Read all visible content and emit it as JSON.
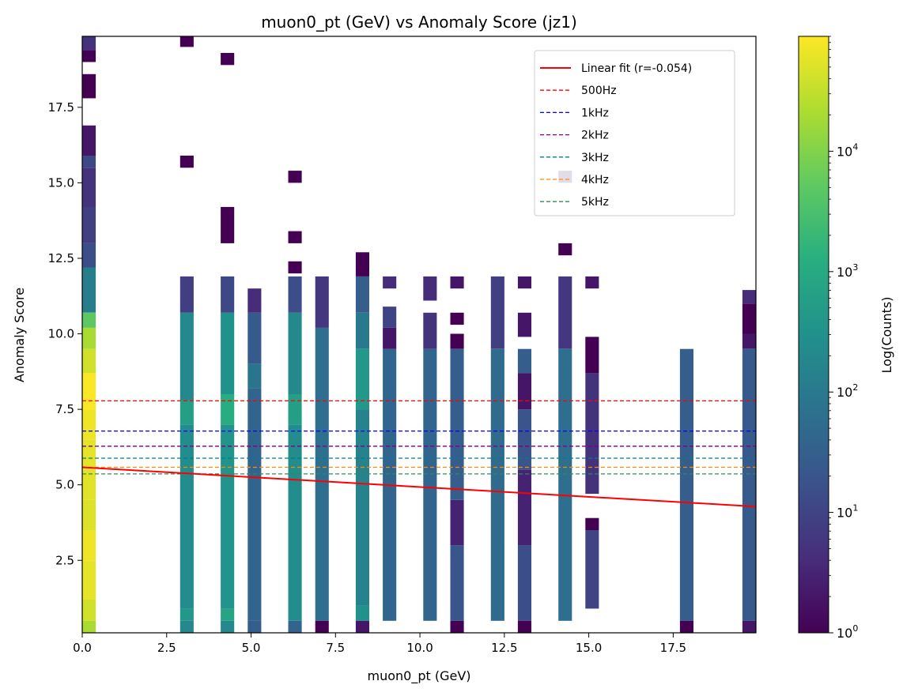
{
  "chart_data": {
    "type": "heatmap",
    "title": "muon0_pt (GeV) vs Anomaly Score (jz1)",
    "xlabel": "muon0_pt (GeV)",
    "ylabel": "Anomaly Score",
    "colorbar_label": "Log(Counts)",
    "colormap": "viridis",
    "colorbar_scale": "log",
    "colorbar_range": [
      1,
      90000
    ],
    "colorbar_ticks": [
      {
        "v": 1,
        "base": "10",
        "exp": "0"
      },
      {
        "v": 10,
        "base": "10",
        "exp": "1"
      },
      {
        "v": 100,
        "base": "10",
        "exp": "2"
      },
      {
        "v": 1000,
        "base": "10",
        "exp": "3"
      },
      {
        "v": 10000,
        "base": "10",
        "exp": "4"
      }
    ],
    "xlim": [
      0,
      19.95
    ],
    "ylim": [
      0.1,
      19.85
    ],
    "xticks": [
      {
        "v": 0,
        "label": "0.0"
      },
      {
        "v": 2.5,
        "label": "2.5"
      },
      {
        "v": 5,
        "label": "5.0"
      },
      {
        "v": 7.5,
        "label": "7.5"
      },
      {
        "v": 10,
        "label": "10.0"
      },
      {
        "v": 12.5,
        "label": "12.5"
      },
      {
        "v": 15,
        "label": "15.0"
      },
      {
        "v": 17.5,
        "label": "17.5"
      }
    ],
    "yticks": [
      {
        "v": 2.5,
        "label": "2.5"
      },
      {
        "v": 5,
        "label": "5.0"
      },
      {
        "v": 7.5,
        "label": "7.5"
      },
      {
        "v": 10,
        "label": "10.0"
      },
      {
        "v": 12.5,
        "label": "12.5"
      },
      {
        "v": 15,
        "label": "15.0"
      },
      {
        "v": 17.5,
        "label": "17.5"
      }
    ],
    "bin_width_x": 0.4,
    "bin_height_y": 0.395,
    "columns": [
      {
        "x": 0.0,
        "cells": [
          [
            0.1,
            0.5,
            20000
          ],
          [
            0.5,
            1.2,
            40000
          ],
          [
            1.2,
            2.5,
            60000
          ],
          [
            2.5,
            3.5,
            70000
          ],
          [
            3.5,
            4.5,
            50000
          ],
          [
            4.5,
            5.5,
            55000
          ],
          [
            5.5,
            6.5,
            60000
          ],
          [
            6.5,
            7.5,
            70000
          ],
          [
            7.5,
            8.7,
            85000
          ],
          [
            8.7,
            9.5,
            40000
          ],
          [
            9.5,
            10.2,
            20000
          ],
          [
            10.2,
            10.7,
            5000
          ],
          [
            10.7,
            12.2,
            120
          ],
          [
            12.2,
            13.0,
            15
          ],
          [
            13.0,
            14.2,
            8
          ],
          [
            14.2,
            15.5,
            5
          ],
          [
            15.5,
            15.9,
            12
          ],
          [
            15.9,
            16.9,
            2
          ],
          [
            17.8,
            18.6,
            1
          ],
          [
            19.0,
            19.4,
            1
          ],
          [
            19.4,
            19.85,
            5
          ]
        ]
      },
      {
        "x": 2.9,
        "cells": [
          [
            0.1,
            0.5,
            200
          ],
          [
            0.5,
            0.9,
            400
          ],
          [
            0.9,
            7.0,
            250
          ],
          [
            7.0,
            7.8,
            600
          ],
          [
            7.8,
            10.7,
            200
          ],
          [
            10.7,
            11.9,
            8
          ],
          [
            15.5,
            15.9,
            1
          ],
          [
            19.5,
            19.85,
            1
          ]
        ]
      },
      {
        "x": 4.1,
        "cells": [
          [
            0.1,
            0.5,
            200
          ],
          [
            0.5,
            0.9,
            800
          ],
          [
            0.9,
            7.0,
            350
          ],
          [
            7.0,
            8.0,
            1200
          ],
          [
            8.0,
            10.7,
            300
          ],
          [
            10.7,
            11.9,
            12
          ],
          [
            13.0,
            14.2,
            1
          ],
          [
            18.9,
            19.3,
            1
          ]
        ]
      },
      {
        "x": 4.9,
        "cells": [
          [
            0.1,
            0.5,
            30
          ],
          [
            0.5,
            8.2,
            40
          ],
          [
            8.2,
            9.0,
            80
          ],
          [
            9.0,
            10.7,
            25
          ],
          [
            10.7,
            11.5,
            4
          ]
        ]
      },
      {
        "x": 6.1,
        "cells": [
          [
            0.1,
            0.5,
            40
          ],
          [
            0.5,
            7.0,
            250
          ],
          [
            7.0,
            8.0,
            600
          ],
          [
            8.0,
            10.7,
            200
          ],
          [
            10.7,
            11.9,
            15
          ],
          [
            12.0,
            12.4,
            1
          ],
          [
            13.0,
            13.4,
            1
          ],
          [
            15.0,
            15.4,
            1
          ]
        ]
      },
      {
        "x": 6.9,
        "cells": [
          [
            0.1,
            0.5,
            1
          ],
          [
            0.5,
            10.2,
            60
          ],
          [
            10.2,
            11.9,
            6
          ]
        ]
      },
      {
        "x": 8.1,
        "cells": [
          [
            0.1,
            0.5,
            2
          ],
          [
            0.5,
            1.0,
            300
          ],
          [
            1.0,
            7.5,
            150
          ],
          [
            7.5,
            9.5,
            400
          ],
          [
            9.5,
            10.7,
            100
          ],
          [
            10.7,
            11.9,
            30
          ],
          [
            11.9,
            12.7,
            1
          ]
        ]
      },
      {
        "x": 8.9,
        "cells": [
          [
            0.5,
            9.5,
            40
          ],
          [
            9.5,
            10.2,
            2
          ],
          [
            10.2,
            10.9,
            10
          ],
          [
            11.5,
            11.9,
            4
          ]
        ]
      },
      {
        "x": 10.1,
        "cells": [
          [
            0.5,
            9.5,
            40
          ],
          [
            9.5,
            10.7,
            5
          ],
          [
            11.1,
            11.9,
            4
          ]
        ]
      },
      {
        "x": 10.9,
        "cells": [
          [
            0.1,
            0.5,
            1
          ],
          [
            0.5,
            3.0,
            20
          ],
          [
            3.0,
            4.5,
            3
          ],
          [
            4.5,
            9.5,
            30
          ],
          [
            9.5,
            10.0,
            1
          ],
          [
            10.3,
            10.7,
            1
          ],
          [
            11.5,
            11.9,
            2
          ]
        ]
      },
      {
        "x": 12.1,
        "cells": [
          [
            0.5,
            9.5,
            50
          ],
          [
            9.5,
            11.9,
            8
          ]
        ]
      },
      {
        "x": 12.9,
        "cells": [
          [
            0.1,
            0.5,
            1
          ],
          [
            0.5,
            3.0,
            15
          ],
          [
            3.0,
            5.5,
            3
          ],
          [
            5.5,
            7.5,
            20
          ],
          [
            7.5,
            8.7,
            2
          ],
          [
            8.7,
            9.5,
            30
          ],
          [
            9.9,
            10.7,
            2
          ],
          [
            11.5,
            11.9,
            2
          ]
        ]
      },
      {
        "x": 14.1,
        "cells": [
          [
            0.5,
            9.5,
            60
          ],
          [
            9.5,
            11.9,
            6
          ],
          [
            12.6,
            13.0,
            1
          ],
          [
            15.0,
            15.4,
            2
          ]
        ]
      },
      {
        "x": 14.9,
        "cells": [
          [
            0.9,
            3.5,
            10
          ],
          [
            3.5,
            3.9,
            1
          ],
          [
            4.7,
            8.7,
            5
          ],
          [
            8.7,
            9.9,
            1
          ],
          [
            11.5,
            11.9,
            2
          ]
        ]
      },
      {
        "x": 17.7,
        "cells": [
          [
            0.1,
            0.5,
            1
          ],
          [
            0.5,
            9.5,
            30
          ]
        ]
      },
      {
        "x": 19.55,
        "cells": [
          [
            0.1,
            0.5,
            2
          ],
          [
            0.5,
            9.5,
            25
          ],
          [
            9.5,
            10.0,
            2
          ],
          [
            10.0,
            11.0,
            1
          ],
          [
            11.0,
            11.45,
            4
          ]
        ]
      }
    ],
    "fit_line": {
      "label": "Linear fit (r=-0.054)",
      "color": "#ff0000",
      "points": [
        [
          0,
          5.58
        ],
        [
          19.95,
          4.28
        ]
      ]
    },
    "threshold_lines": [
      {
        "label": "500Hz",
        "y": 7.78,
        "color": "#ff0000"
      },
      {
        "label": "1kHz",
        "y": 6.78,
        "color": "#0000ff"
      },
      {
        "label": "2kHz",
        "y": 6.28,
        "color": "#800080"
      },
      {
        "label": "3kHz",
        "y": 5.88,
        "color": "#008080"
      },
      {
        "label": "4kHz",
        "y": 5.58,
        "color": "#ff8c00"
      },
      {
        "label": "5kHz",
        "y": 5.36,
        "color": "#2e8b57"
      }
    ],
    "legend_position": "top-right",
    "grid": false
  }
}
